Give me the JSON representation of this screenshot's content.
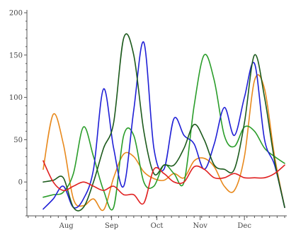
{
  "chart_data": {
    "type": "line",
    "title": "",
    "xlabel": "",
    "ylabel": "",
    "x_range": [
      0,
      24
    ],
    "ylim": [
      -40,
      200
    ],
    "y_ticks": [
      0,
      50,
      100,
      150,
      200
    ],
    "x_ticks": [
      {
        "label": "Aug",
        "x": 2.3
      },
      {
        "label": "Sep",
        "x": 6.8
      },
      {
        "label": "Oct",
        "x": 11.3
      },
      {
        "label": "Nov",
        "x": 15.6
      },
      {
        "label": "Dec",
        "x": 20.0
      }
    ],
    "grid": false,
    "legend": "none",
    "x": [
      0,
      1,
      2,
      3,
      4,
      5,
      6,
      7,
      8,
      9,
      10,
      11,
      12,
      13,
      14,
      15,
      16,
      17,
      18,
      19,
      20,
      21,
      22,
      23,
      24
    ],
    "series": [
      {
        "color": "#e8891c",
        "values": [
          15,
          80,
          45,
          -20,
          -28,
          -20,
          -33,
          5,
          33,
          30,
          12,
          4,
          2,
          10,
          5,
          25,
          28,
          18,
          -5,
          -10,
          30,
          120,
          110,
          30,
          -30
        ]
      },
      {
        "color": "#2a9d2a",
        "values": [
          -18,
          -15,
          -12,
          10,
          65,
          30,
          -10,
          -30,
          55,
          55,
          0,
          -5,
          20,
          10,
          0,
          90,
          150,
          120,
          55,
          42,
          65,
          60,
          40,
          30,
          22
        ]
      },
      {
        "color": "#1f1fd6",
        "values": [
          -32,
          -20,
          -5,
          -30,
          -20,
          15,
          110,
          40,
          -5,
          85,
          165,
          40,
          15,
          75,
          55,
          45,
          15,
          45,
          88,
          55,
          100,
          140,
          50,
          20,
          -30
        ]
      },
      {
        "color": "#1c5a1c",
        "values": [
          0,
          2,
          5,
          -30,
          -30,
          0,
          40,
          70,
          170,
          150,
          60,
          10,
          20,
          20,
          40,
          68,
          50,
          20,
          15,
          15,
          70,
          150,
          100,
          25,
          -30
        ]
      },
      {
        "color": "#e02020",
        "values": [
          25,
          0,
          -10,
          -5,
          0,
          -5,
          -10,
          -5,
          -15,
          -15,
          -25,
          15,
          10,
          0,
          0,
          18,
          15,
          5,
          5,
          10,
          5,
          5,
          5,
          10,
          20
        ]
      }
    ]
  }
}
